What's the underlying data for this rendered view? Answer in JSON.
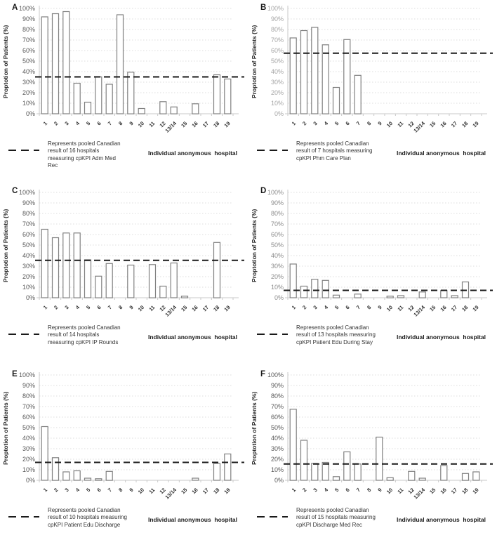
{
  "colors": {
    "bar_fill": "#ffffff",
    "bar_stroke": "#808080",
    "grid": "#dcdcdc",
    "axis": "#c8c8c8",
    "pooled_line": "#1a1a1a",
    "x_label_text": "#333333"
  },
  "chart_data": {
    "type": "bar",
    "ylabel": "Proptotion of Patients (%)",
    "xlabel": "Individual anonymous  hospital",
    "ylim": [
      0,
      100
    ],
    "grid": true,
    "yticks": [
      "0%",
      "10%",
      "20%",
      "30%",
      "40%",
      "50%",
      "60%",
      "70%",
      "80%",
      "90%",
      "100%"
    ],
    "categories": [
      "1",
      "2",
      "3",
      "4",
      "5",
      "6",
      "7",
      "8",
      "9",
      "10",
      "11",
      "12",
      "13/14",
      "15",
      "16",
      "17",
      "18",
      "19"
    ],
    "panels": [
      {
        "panel": "A",
        "values": [
          92,
          95,
          97,
          29,
          11,
          35,
          28,
          94,
          39.5,
          5,
          0,
          11.5,
          6.5,
          0,
          9.5,
          0,
          37,
          33
        ],
        "pooled": 35,
        "tick_color": "#595959",
        "legend_lines": [
          "Represents pooled Canadian",
          "result of 16 hospitals",
          "measuring cpKPI Adm Med",
          "Rec"
        ]
      },
      {
        "panel": "B",
        "values": [
          72,
          79,
          82,
          65.5,
          25,
          70.5,
          36.5,
          0,
          0,
          0,
          0,
          0,
          0,
          0,
          0,
          0,
          0,
          0
        ],
        "pooled": 57.5,
        "tick_color": "#a6a6a6",
        "legend_lines": [
          "Represents pooled Canadian",
          "result of 7 hospitals measuring",
          "cpKPI Phm Care Plan"
        ]
      },
      {
        "panel": "C",
        "values": [
          65,
          57,
          61.5,
          61.5,
          36,
          20.5,
          32.5,
          0,
          31,
          0,
          31.5,
          11,
          33,
          1.5,
          0,
          0,
          52.5,
          0
        ],
        "pooled": 35.5,
        "tick_color": "#595959",
        "legend_lines": [
          "Represents pooled Canadian",
          "result of 14 hospitals",
          "measuring cpKPI IP Rounds"
        ]
      },
      {
        "panel": "D",
        "values": [
          32,
          11,
          17.5,
          16.5,
          2.5,
          0,
          3.5,
          0,
          0,
          1.5,
          2,
          0,
          5.5,
          0,
          7,
          2,
          15,
          0
        ],
        "pooled": 7,
        "tick_color": "#8c8c8c",
        "legend_lines": [
          "Represents pooled Canadian",
          "result of 13 hospitals measuring",
          "cpKPI Patient Edu During Stay"
        ]
      },
      {
        "panel": "E",
        "values": [
          51,
          21.5,
          8,
          9,
          2,
          1.5,
          8.5,
          0,
          0,
          0,
          0,
          0,
          0,
          0,
          2,
          0,
          16,
          25
        ],
        "pooled": 17,
        "tick_color": "#595959",
        "legend_lines": [
          "Represents pooled Canadian",
          "result of 10 hospitals measuring",
          "cpKPI Patient Edu Discharge"
        ]
      },
      {
        "panel": "F",
        "values": [
          67.5,
          38,
          16,
          17,
          3.5,
          27,
          15.5,
          0,
          41,
          2.5,
          0,
          8.5,
          2,
          0,
          14,
          0,
          6.5,
          8
        ],
        "pooled": 15.5,
        "tick_color": "#595959",
        "legend_lines": [
          "Represents pooled Canadian",
          "result of 15 hospitals measuring",
          "cpKPI Discharge Med Rec"
        ]
      }
    ]
  }
}
